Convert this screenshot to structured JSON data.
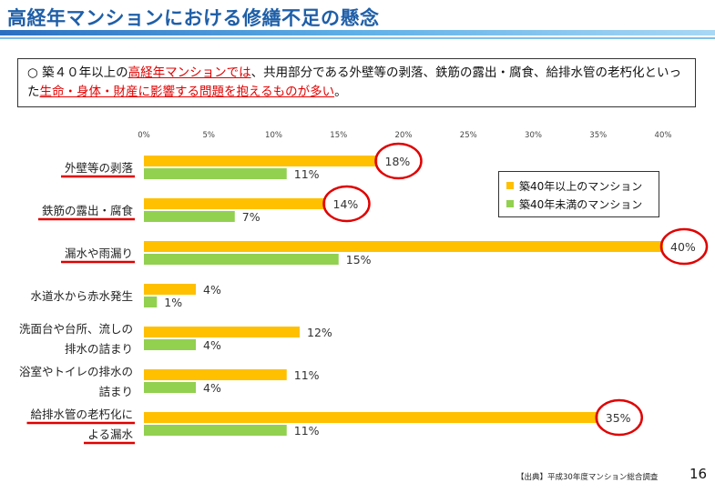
{
  "slide": {
    "title": "高経年マンションにおける修繕不足の懸念",
    "note": {
      "bullet": "○",
      "parts": [
        {
          "text": "築４０年以上の",
          "red": false
        },
        {
          "text": "高経年マンションでは",
          "red": true
        },
        {
          "text": "、共用部分である外壁等の剥落、鉄筋の露出・腐食、給排水管の老朽化といった",
          "red": false
        },
        {
          "text": "生命・身体・財産に影響する問題を抱えるものが多い",
          "red": true
        },
        {
          "text": "。",
          "red": false
        }
      ]
    },
    "source": "【出典】平成30年度マンション総合調査",
    "page_number": "16"
  },
  "chart_data": {
    "type": "bar",
    "orientation": "horizontal",
    "xlim": [
      0,
      40
    ],
    "x_ticks": [
      "0%",
      "5%",
      "10%",
      "15%",
      "20%",
      "25%",
      "30%",
      "35%",
      "40%"
    ],
    "categories": [
      {
        "lines": [
          "外壁等の剥落"
        ],
        "underlined": true
      },
      {
        "lines": [
          "鉄筋の露出・腐食"
        ],
        "underlined": true
      },
      {
        "lines": [
          "漏水や雨漏り"
        ],
        "underlined": true
      },
      {
        "lines": [
          "水道水から赤水発生"
        ],
        "underlined": false
      },
      {
        "lines": [
          "洗面台や台所、流しの",
          "排水の詰まり"
        ],
        "underlined": false
      },
      {
        "lines": [
          "浴室やトイレの排水の",
          "詰まり"
        ],
        "underlined": false
      },
      {
        "lines": [
          "給排水管の老朽化に",
          "よる漏水"
        ],
        "underlined": true
      }
    ],
    "series": [
      {
        "name": "築40年以上のマンション",
        "color": "#ffc000",
        "values": [
          18,
          14,
          40,
          4,
          12,
          11,
          35
        ],
        "labels": [
          "18%",
          "14%",
          "40%",
          "4%",
          "12%",
          "11%",
          "35%"
        ]
      },
      {
        "name": "築40年未満のマンション",
        "color": "#92d050",
        "values": [
          11,
          7,
          15,
          1,
          4,
          4,
          11
        ],
        "labels": [
          "11%",
          "7%",
          "15%",
          "1%",
          "4%",
          "4%",
          "11%"
        ]
      }
    ],
    "highlighted": [
      0,
      1,
      2,
      6
    ],
    "legend": "right"
  }
}
